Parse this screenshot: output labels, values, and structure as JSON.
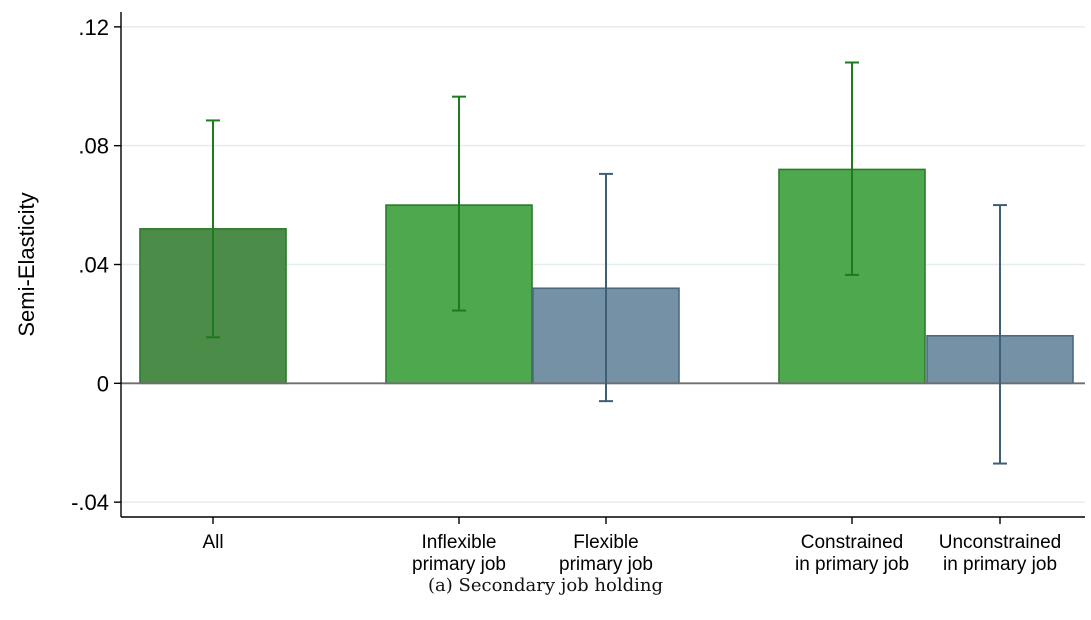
{
  "chart_data": {
    "type": "bar",
    "caption": "(a) Secondary job holding",
    "ylabel": "Semi-Elasticity",
    "ylim": [
      -0.045,
      0.125
    ],
    "yticks": [
      {
        "value": 0.12,
        "label": ".12"
      },
      {
        "value": 0.08,
        "label": ".08"
      },
      {
        "value": 0.04,
        "label": ".04"
      },
      {
        "value": 0,
        "label": "0"
      },
      {
        "value": -0.04,
        "label": "-.04"
      }
    ],
    "grid": true,
    "bars": [
      {
        "label": [
          "All"
        ],
        "value": 0.052,
        "ci": [
          0.0155,
          0.0885
        ],
        "color": "#4a8c48",
        "stroke": "#2c7a2c",
        "err_color": "#1e7a1e"
      },
      {
        "label": [
          "Inflexible",
          "primary job"
        ],
        "value": 0.06,
        "ci": [
          0.0245,
          0.0965
        ],
        "color": "#4ea84e",
        "stroke": "#2c7a2c",
        "err_color": "#1e7a1e"
      },
      {
        "label": [
          "Flexible",
          "primary job"
        ],
        "value": 0.032,
        "ci": [
          -0.006,
          0.0705
        ],
        "color": "#7491a5",
        "stroke": "#4b6a80",
        "err_color": "#3f5f74"
      },
      {
        "label": [
          "Constrained",
          "in primary job"
        ],
        "value": 0.072,
        "ci": [
          0.0365,
          0.108
        ],
        "color": "#4ea84e",
        "stroke": "#2c7a2c",
        "err_color": "#1e7a1e"
      },
      {
        "label": [
          "Unconstrained",
          "in primary job"
        ],
        "value": 0.016,
        "ci": [
          -0.027,
          0.06
        ],
        "color": "#7491a5",
        "stroke": "#4b6a80",
        "err_color": "#3f5f74"
      }
    ]
  }
}
